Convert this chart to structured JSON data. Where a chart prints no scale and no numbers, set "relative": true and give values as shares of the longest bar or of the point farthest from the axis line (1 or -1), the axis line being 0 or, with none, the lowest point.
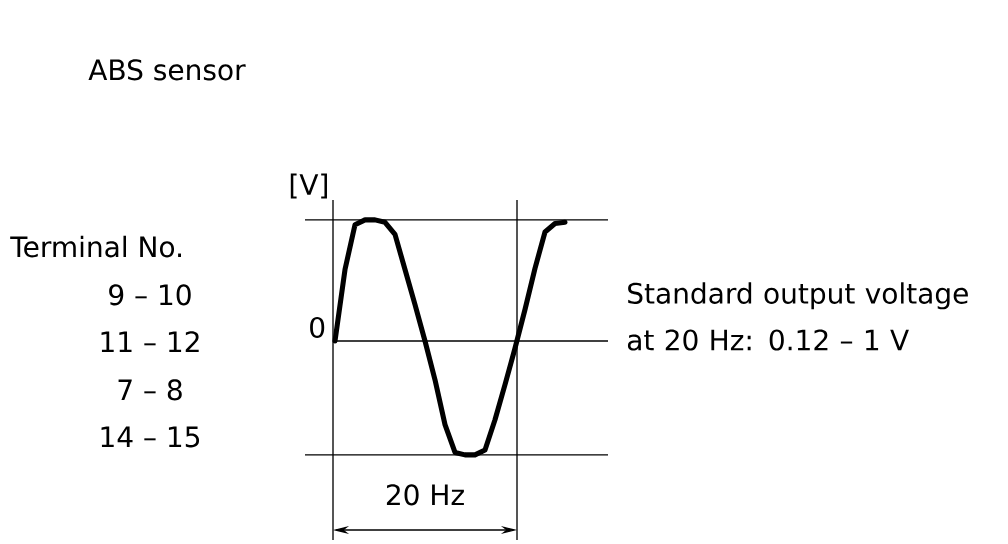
{
  "chart_data": {
    "type": "line",
    "title": "ABS sensor",
    "ylabel": "[V]",
    "relative": true,
    "categories": [
      null,
      null,
      null,
      null,
      null,
      null,
      null,
      null,
      null,
      null,
      null,
      null,
      null,
      null,
      null,
      null,
      null,
      null,
      null,
      null,
      null,
      null,
      null,
      null
    ],
    "series": [
      {
        "color": "#000000",
        "values": [
          0,
          0.59,
          0.96,
          1,
          1,
          0.98,
          0.88,
          0.59,
          0.3,
          0,
          -0.32,
          -0.69,
          -0.92,
          -0.94,
          -0.94,
          -0.9,
          -0.65,
          -0.36,
          -0.06,
          0.26,
          0.6,
          0.9,
          0.97,
          0.98
        ]
      }
    ],
    "ref_lines": [
      {
        "axis": "y",
        "value": 1,
        "color": "#000000"
      },
      {
        "axis": "y",
        "value": -0.94,
        "color": "#000000"
      }
    ],
    "annotations": [
      "0",
      "20 Hz",
      "Terminal No.",
      "9 – 10",
      "11 – 12",
      "7 – 8",
      "14 – 15",
      "Standard output voltage at 20 Hz: 0.12 – 1 V"
    ]
  }
}
